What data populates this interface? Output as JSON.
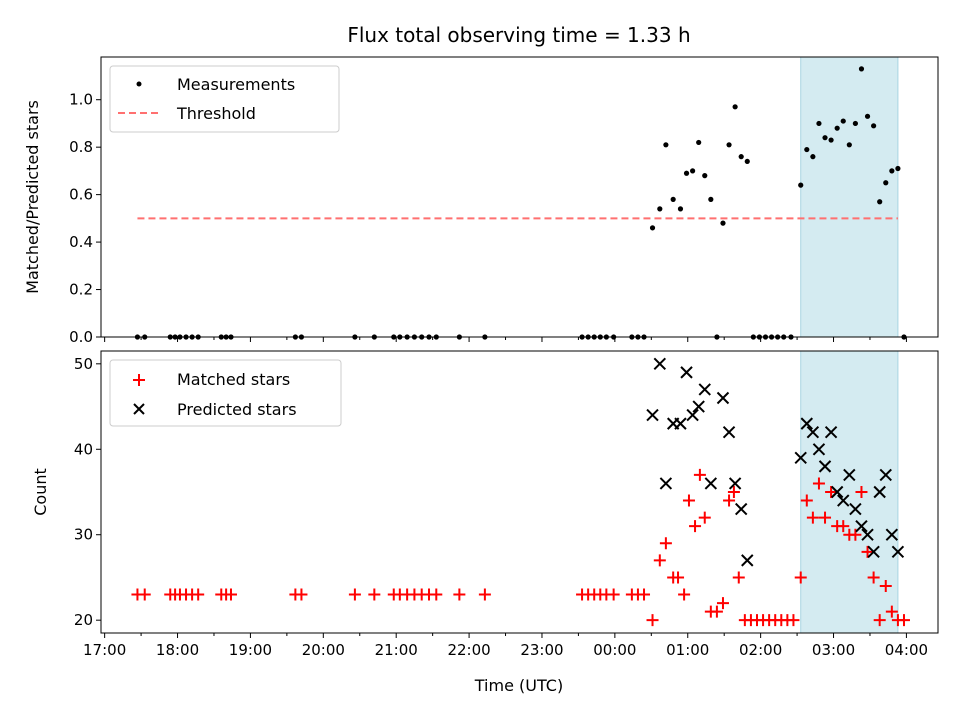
{
  "chart_data": [
    {
      "type": "scatter",
      "title": "Flux total observing time = 1.33 h",
      "ylabel": "Matched/Predicted stars",
      "xlim": [
        "16:57",
        "04:26"
      ],
      "ylim": [
        0,
        1.18
      ],
      "yticks": [
        0.0,
        0.2,
        0.4,
        0.6,
        0.8,
        1.0
      ],
      "ytick_labels": [
        "0.0",
        "0.2",
        "0.4",
        "0.6",
        "0.8",
        "1.0"
      ],
      "xtick_labels_visible": false,
      "highlight_span": {
        "from": "02:33",
        "to": "03:53",
        "color": "#d4ebf1"
      },
      "legend": {
        "position": "upper-left"
      },
      "series": [
        {
          "name": "Measurements",
          "marker": "dot",
          "color": "#000000",
          "points": [
            [
              "17:27",
              0
            ],
            [
              "17:33",
              0
            ],
            [
              "17:54",
              0
            ],
            [
              "17:58",
              0
            ],
            [
              "18:02",
              0
            ],
            [
              "18:07",
              0
            ],
            [
              "18:12",
              0
            ],
            [
              "18:17",
              0
            ],
            [
              "18:36",
              0
            ],
            [
              "18:40",
              0
            ],
            [
              "18:44",
              0
            ],
            [
              "19:37",
              0
            ],
            [
              "19:42",
              0
            ],
            [
              "20:26",
              0
            ],
            [
              "20:42",
              0
            ],
            [
              "20:58",
              0
            ],
            [
              "21:03",
              0
            ],
            [
              "21:09",
              0
            ],
            [
              "21:15",
              0
            ],
            [
              "21:21",
              0
            ],
            [
              "21:27",
              0
            ],
            [
              "21:33",
              0
            ],
            [
              "21:52",
              0
            ],
            [
              "22:13",
              0
            ],
            [
              "23:33",
              0
            ],
            [
              "23:38",
              0
            ],
            [
              "23:43",
              0
            ],
            [
              "23:48",
              0
            ],
            [
              "23:53",
              0
            ],
            [
              "23:59",
              0
            ],
            [
              "00:14",
              0
            ],
            [
              "00:19",
              0
            ],
            [
              "00:24",
              0
            ],
            [
              "00:31",
              0.46
            ],
            [
              "00:37",
              0.54
            ],
            [
              "00:42",
              0.81
            ],
            [
              "00:48",
              0.58
            ],
            [
              "00:54",
              0.54
            ],
            [
              "00:59",
              0.69
            ],
            [
              "01:04",
              0.7
            ],
            [
              "01:09",
              0.82
            ],
            [
              "01:14",
              0.68
            ],
            [
              "01:19",
              0.58
            ],
            [
              "01:24",
              0
            ],
            [
              "01:29",
              0.48
            ],
            [
              "01:34",
              0.81
            ],
            [
              "01:39",
              0.97
            ],
            [
              "01:44",
              0.76
            ],
            [
              "01:49",
              0.74
            ],
            [
              "01:54",
              0
            ],
            [
              "01:59",
              0
            ],
            [
              "02:04",
              0
            ],
            [
              "02:09",
              0
            ],
            [
              "02:14",
              0
            ],
            [
              "02:19",
              0
            ],
            [
              "02:25",
              0
            ],
            [
              "02:33",
              0.64
            ],
            [
              "02:38",
              0.79
            ],
            [
              "02:43",
              0.76
            ],
            [
              "02:48",
              0.9
            ],
            [
              "02:53",
              0.84
            ],
            [
              "02:58",
              0.83
            ],
            [
              "03:03",
              0.88
            ],
            [
              "03:08",
              0.91
            ],
            [
              "03:13",
              0.81
            ],
            [
              "03:18",
              0.9
            ],
            [
              "03:23",
              1.13
            ],
            [
              "03:28",
              0.93
            ],
            [
              "03:33",
              0.89
            ],
            [
              "03:38",
              0.57
            ],
            [
              "03:43",
              0.65
            ],
            [
              "03:48",
              0.7
            ],
            [
              "03:53",
              0.71
            ],
            [
              "03:58",
              0
            ]
          ]
        },
        {
          "name": "Threshold",
          "line_style": "dashed",
          "color": "#ff7070",
          "points": [
            [
              "17:27",
              0.5
            ],
            [
              "03:53",
              0.5
            ]
          ]
        }
      ]
    },
    {
      "type": "scatter",
      "xlabel": "Time (UTC)",
      "ylabel": "Count",
      "xlim": [
        "16:57",
        "04:26"
      ],
      "ylim": [
        18.5,
        51.5
      ],
      "xtick_labels": [
        "17:00",
        "18:00",
        "19:00",
        "20:00",
        "21:00",
        "22:00",
        "23:00",
        "00:00",
        "01:00",
        "02:00",
        "03:00",
        "04:00"
      ],
      "yticks": [
        20,
        30,
        40,
        50
      ],
      "ytick_labels": [
        "20",
        "30",
        "40",
        "50"
      ],
      "highlight_span": {
        "from": "02:33",
        "to": "03:53",
        "color": "#d4ebf1"
      },
      "legend": {
        "position": "upper-left"
      },
      "series": [
        {
          "name": "Matched stars",
          "marker": "plus",
          "color": "#ff0000",
          "points": [
            [
              "17:27",
              23
            ],
            [
              "17:33",
              23
            ],
            [
              "17:54",
              23
            ],
            [
              "17:58",
              23
            ],
            [
              "18:02",
              23
            ],
            [
              "18:07",
              23
            ],
            [
              "18:12",
              23
            ],
            [
              "18:17",
              23
            ],
            [
              "18:36",
              23
            ],
            [
              "18:40",
              23
            ],
            [
              "18:44",
              23
            ],
            [
              "19:37",
              23
            ],
            [
              "19:42",
              23
            ],
            [
              "20:26",
              23
            ],
            [
              "20:42",
              23
            ],
            [
              "20:58",
              23
            ],
            [
              "21:03",
              23
            ],
            [
              "21:09",
              23
            ],
            [
              "21:15",
              23
            ],
            [
              "21:21",
              23
            ],
            [
              "21:27",
              23
            ],
            [
              "21:33",
              23
            ],
            [
              "21:52",
              23
            ],
            [
              "22:13",
              23
            ],
            [
              "23:33",
              23
            ],
            [
              "23:38",
              23
            ],
            [
              "23:43",
              23
            ],
            [
              "23:48",
              23
            ],
            [
              "23:53",
              23
            ],
            [
              "23:59",
              23
            ],
            [
              "00:14",
              23
            ],
            [
              "00:19",
              23
            ],
            [
              "00:24",
              23
            ],
            [
              "00:31",
              20
            ],
            [
              "00:37",
              27
            ],
            [
              "00:42",
              29
            ],
            [
              "00:48",
              25
            ],
            [
              "00:52",
              25
            ],
            [
              "00:57",
              23
            ],
            [
              "01:01",
              34
            ],
            [
              "01:06",
              31
            ],
            [
              "01:10",
              37
            ],
            [
              "01:14",
              32
            ],
            [
              "01:19",
              21
            ],
            [
              "01:24",
              21
            ],
            [
              "01:29",
              22
            ],
            [
              "01:34",
              34
            ],
            [
              "01:38",
              35
            ],
            [
              "01:42",
              25
            ],
            [
              "01:47",
              20
            ],
            [
              "01:52",
              20
            ],
            [
              "01:57",
              20
            ],
            [
              "02:02",
              20
            ],
            [
              "02:07",
              20
            ],
            [
              "02:12",
              20
            ],
            [
              "02:17",
              20
            ],
            [
              "02:22",
              20
            ],
            [
              "02:27",
              20
            ],
            [
              "02:33",
              25
            ],
            [
              "02:38",
              34
            ],
            [
              "02:43",
              32
            ],
            [
              "02:48",
              36
            ],
            [
              "02:53",
              32
            ],
            [
              "02:58",
              35
            ],
            [
              "03:03",
              31
            ],
            [
              "03:08",
              31
            ],
            [
              "03:13",
              30
            ],
            [
              "03:18",
              30
            ],
            [
              "03:23",
              35
            ],
            [
              "03:28",
              28
            ],
            [
              "03:33",
              25
            ],
            [
              "03:38",
              20
            ],
            [
              "03:43",
              24
            ],
            [
              "03:48",
              21
            ],
            [
              "03:53",
              20
            ],
            [
              "03:58",
              20
            ]
          ]
        },
        {
          "name": "Predicted stars",
          "marker": "x",
          "color": "#000000",
          "points": [
            [
              "00:31",
              44
            ],
            [
              "00:37",
              50
            ],
            [
              "00:42",
              36
            ],
            [
              "00:48",
              43
            ],
            [
              "00:54",
              43
            ],
            [
              "00:59",
              49
            ],
            [
              "01:04",
              44
            ],
            [
              "01:09",
              45
            ],
            [
              "01:14",
              47
            ],
            [
              "01:19",
              36
            ],
            [
              "01:29",
              46
            ],
            [
              "01:34",
              42
            ],
            [
              "01:39",
              36
            ],
            [
              "01:44",
              33
            ],
            [
              "01:49",
              27
            ],
            [
              "02:33",
              39
            ],
            [
              "02:38",
              43
            ],
            [
              "02:43",
              42
            ],
            [
              "02:48",
              40
            ],
            [
              "02:53",
              38
            ],
            [
              "02:58",
              42
            ],
            [
              "03:03",
              35
            ],
            [
              "03:08",
              34
            ],
            [
              "03:13",
              37
            ],
            [
              "03:18",
              33
            ],
            [
              "03:23",
              31
            ],
            [
              "03:28",
              30
            ],
            [
              "03:33",
              28
            ],
            [
              "03:38",
              35
            ],
            [
              "03:43",
              37
            ],
            [
              "03:48",
              30
            ],
            [
              "03:53",
              28
            ]
          ]
        }
      ]
    }
  ]
}
